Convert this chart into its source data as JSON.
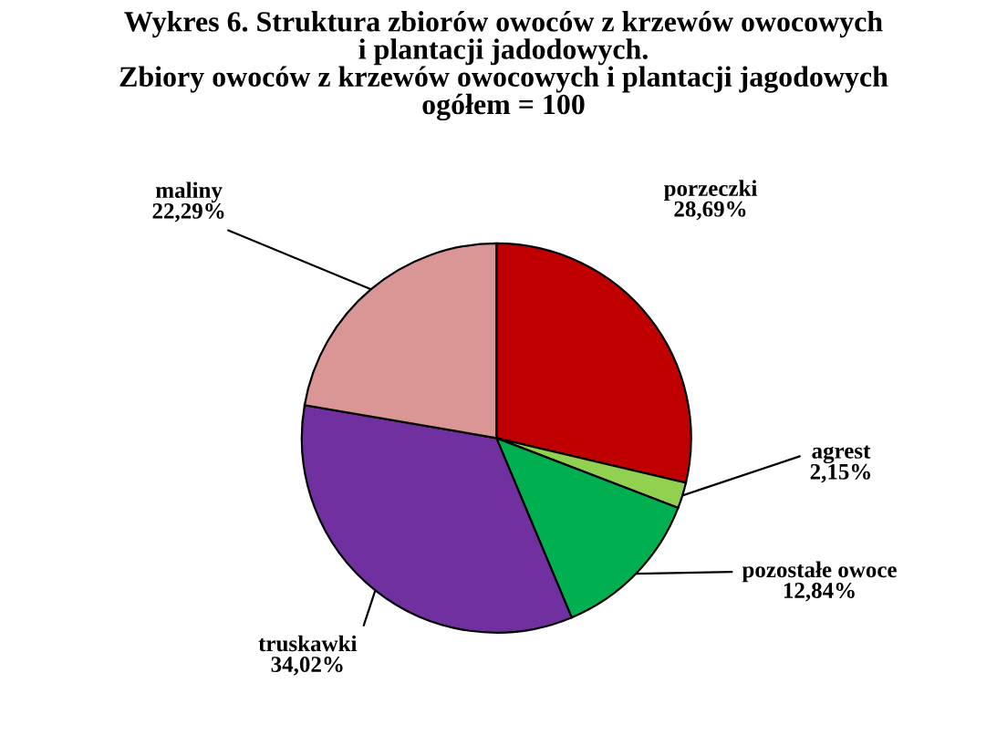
{
  "chart_data": {
    "type": "pie",
    "title": "Wykres 6. Struktura zbiorów owoców z krzewów owocowych\ni plantacji jadodowych.\nZbiory owoców z krzewów owocowych i plantacji jagodowych\nogółem = 100",
    "categories": [
      "porzeczki",
      "agrest",
      "pozostałe owoce",
      "truskawki",
      "maliny"
    ],
    "values": [
      28.69,
      2.15,
      12.84,
      34.02,
      22.29
    ],
    "value_labels": [
      "28,69%",
      "2,15%",
      "12,84%",
      "34,02%",
      "22,29%"
    ],
    "colors": [
      "#c00000",
      "#92d050",
      "#00b050",
      "#7030a0",
      "#d99694"
    ],
    "legend": false
  }
}
